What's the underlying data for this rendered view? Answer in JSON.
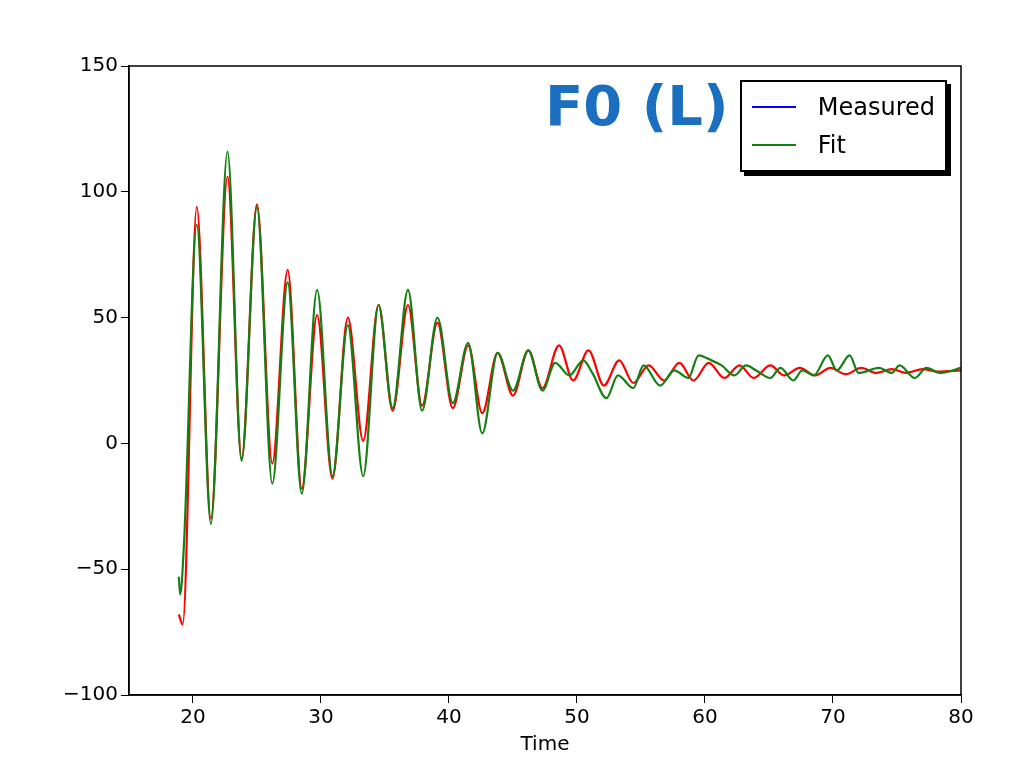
{
  "chart_data": {
    "type": "line",
    "title": "F0 (L)",
    "xlabel": "Time",
    "xlim": [
      15,
      80
    ],
    "xticks": [
      20,
      30,
      40,
      50,
      60,
      70,
      80
    ],
    "ylim": [
      -100,
      150
    ],
    "yticks": [
      -100,
      -50,
      0,
      50,
      100,
      150
    ],
    "grid": false,
    "legend": "top right",
    "marker": "none",
    "line_style": "solid",
    "series": [
      {
        "name": "Measured",
        "color": "#0000ff"
      },
      {
        "name": "Fit",
        "color": "#138013",
        "x": [
          18.9,
          19.0,
          19.3,
          20.3,
          21.4,
          22.7,
          23.8,
          25.0,
          26.2,
          27.4,
          28.5,
          29.7,
          30.9,
          32.1,
          33.3,
          34.5,
          35.6,
          36.8,
          37.9,
          39.1,
          40.3,
          41.5,
          42.6,
          43.8,
          45.0,
          46.2,
          47.3,
          48.3,
          49.4,
          50.5,
          51.2,
          52.3,
          53.2,
          54.4,
          55.2,
          56.5,
          57.6,
          58.7,
          59.5,
          60.5,
          61.3,
          62.3,
          63.2,
          64.0,
          65.1,
          65.9,
          66.9,
          67.6,
          68.5,
          69.6,
          70.3,
          71.3,
          72.0,
          73.6,
          74.6,
          75.2,
          76.4,
          77.3,
          78.4,
          80
        ],
        "values": [
          -53,
          -60,
          -40,
          87,
          -32,
          116,
          -7,
          94,
          -16,
          64,
          -20,
          61,
          -13,
          47,
          -13,
          55,
          14,
          61,
          13,
          50,
          16,
          40,
          4,
          36,
          21,
          37,
          21,
          32,
          27,
          33,
          28,
          18,
          27,
          22,
          31,
          23,
          29,
          26,
          35,
          33,
          31,
          27,
          31,
          29,
          26,
          30,
          25,
          29,
          27,
          35,
          29,
          35,
          28,
          30,
          28,
          31,
          26,
          30,
          28,
          30
        ]
      },
      {
        "color": "#ff0000",
        "x": [
          18.9,
          19.2,
          20.3,
          21.4,
          22.7,
          23.8,
          25.0,
          26.2,
          27.4,
          28.5,
          29.7,
          30.9,
          32.1,
          33.3,
          34.5,
          35.6,
          36.8,
          37.9,
          39.1,
          40.3,
          41.5,
          42.6,
          43.8,
          45.0,
          46.2,
          47.3,
          48.6,
          49.7,
          50.9,
          52.1,
          53.3,
          54.4,
          55.6,
          56.8,
          58.0,
          59.1,
          60.3,
          61.5,
          62.7,
          63.8,
          65.1,
          66.2,
          67.4,
          68.6,
          69.8,
          71.0,
          72.2,
          73.4,
          74.6,
          75.7,
          77.0,
          78.2,
          80
        ],
        "values": [
          -68,
          -72,
          94,
          -30,
          106,
          -6,
          95,
          -8,
          69,
          -18,
          51,
          -14,
          50,
          1,
          55,
          13,
          55,
          15,
          48,
          14,
          39,
          12,
          36,
          19,
          37,
          22,
          39,
          25,
          37,
          23,
          33,
          24,
          31,
          25,
          32,
          25,
          32,
          26,
          31,
          26,
          31,
          27,
          30,
          27,
          30,
          27.5,
          30,
          28,
          29.5,
          28,
          29.5,
          28.5,
          29
        ]
      }
    ]
  }
}
